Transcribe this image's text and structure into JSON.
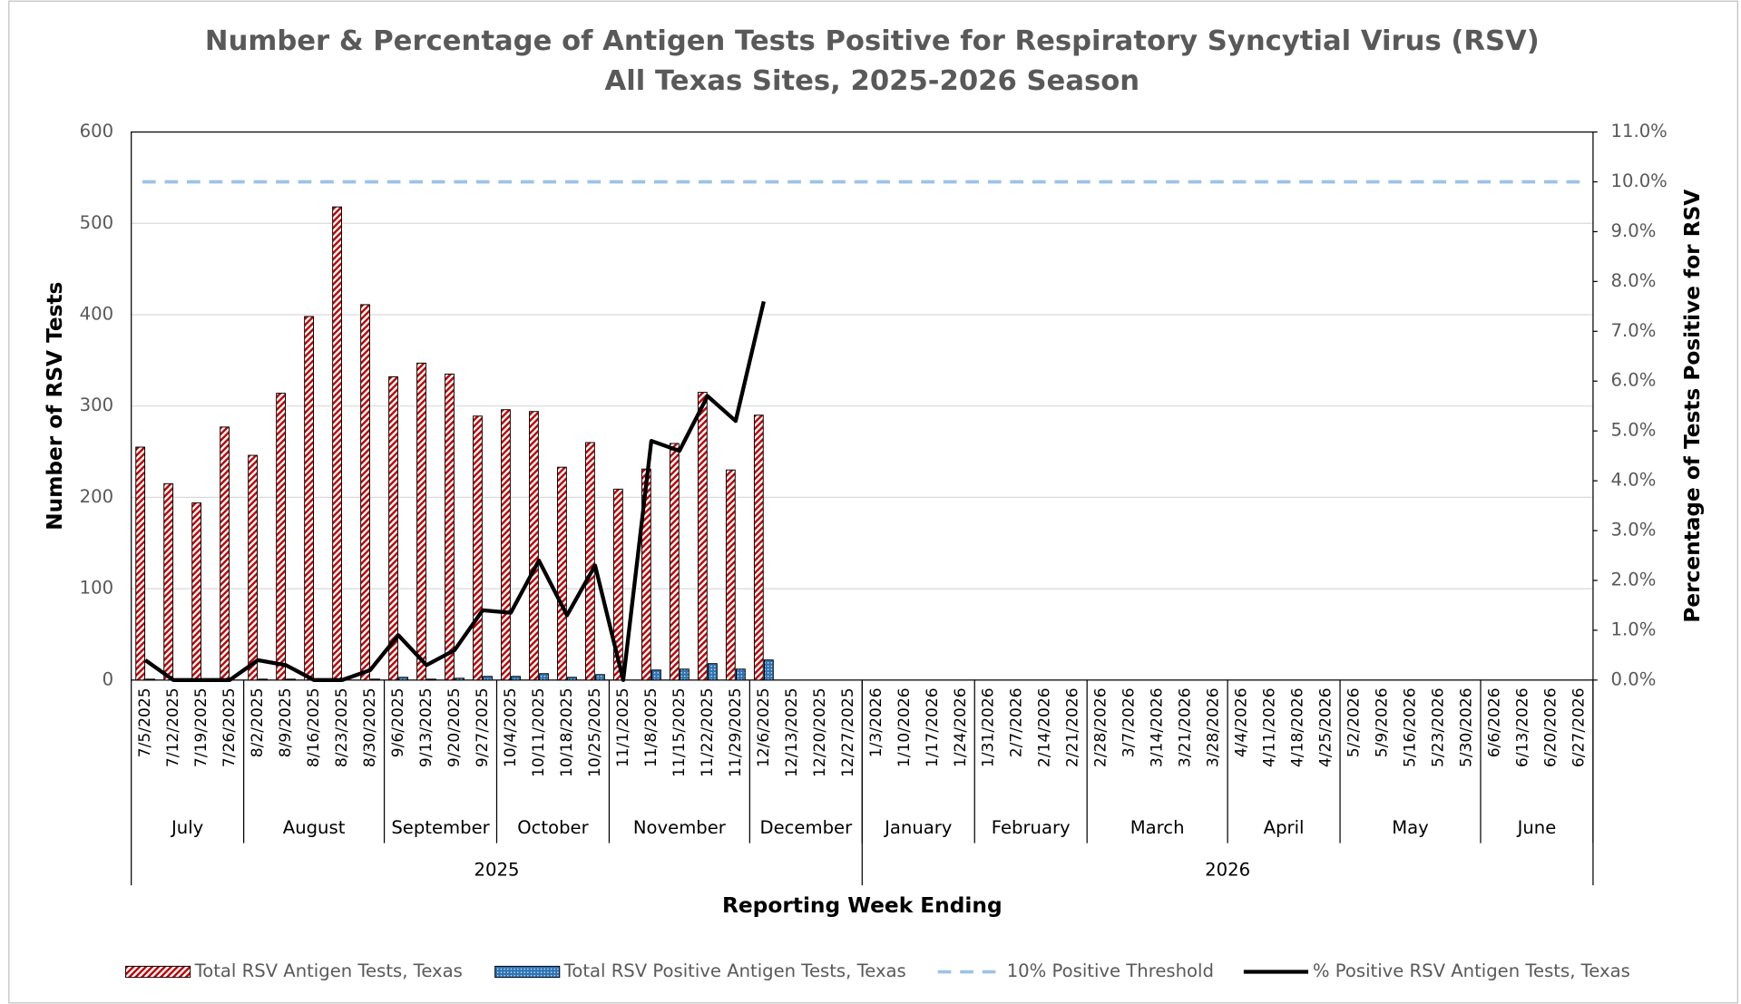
{
  "chart_data": {
    "type": "bar-line",
    "title": "Number & Percentage of Antigen Tests Positive for Respiratory Syncytial Virus (RSV)",
    "subtitle": "All Texas Sites, 2025-2026 Season",
    "x_label": "Reporting Week Ending",
    "y_label": "Number of RSV Tests",
    "y2_label": "Percentage of Tests Positive for RSV",
    "categories": [
      "7/5/2025",
      "7/12/2025",
      "7/19/2025",
      "7/26/2025",
      "8/2/2025",
      "8/9/2025",
      "8/16/2025",
      "8/23/2025",
      "8/30/2025",
      "9/6/2025",
      "9/13/2025",
      "9/20/2025",
      "9/27/2025",
      "10/4/2025",
      "10/11/2025",
      "10/18/2025",
      "10/25/2025",
      "11/1/2025",
      "11/8/2025",
      "11/15/2025",
      "11/22/2025",
      "11/29/2025",
      "12/6/2025",
      "12/13/2025",
      "12/20/2025",
      "12/27/2025",
      "1/3/2026",
      "1/10/2026",
      "1/17/2026",
      "1/24/2026",
      "1/31/2026",
      "2/7/2026",
      "2/14/2026",
      "2/21/2026",
      "2/28/2026",
      "3/7/2026",
      "3/14/2026",
      "3/21/2026",
      "3/28/2026",
      "4/4/2026",
      "4/11/2026",
      "4/18/2026",
      "4/25/2026",
      "5/2/2026",
      "5/9/2026",
      "5/16/2026",
      "5/23/2026",
      "5/30/2026",
      "6/6/2026",
      "6/13/2026",
      "6/20/2026",
      "6/27/2026"
    ],
    "months": [
      {
        "label": "July",
        "weeks": 4
      },
      {
        "label": "August",
        "weeks": 5
      },
      {
        "label": "September",
        "weeks": 4
      },
      {
        "label": "October",
        "weeks": 4
      },
      {
        "label": "November",
        "weeks": 5
      },
      {
        "label": "December",
        "weeks": 4
      },
      {
        "label": "January",
        "weeks": 4
      },
      {
        "label": "February",
        "weeks": 4
      },
      {
        "label": "March",
        "weeks": 5
      },
      {
        "label": "April",
        "weeks": 4
      },
      {
        "label": "May",
        "weeks": 5
      },
      {
        "label": "June",
        "weeks": 4
      }
    ],
    "years": [
      {
        "label": "2025",
        "weeks": 26
      },
      {
        "label": "2026",
        "weeks": 26
      }
    ],
    "series": [
      {
        "name": "Total RSV Antigen Tests, Texas",
        "kind": "bar",
        "color": "#c00000",
        "values": [
          255,
          215,
          194,
          277,
          246,
          314,
          398,
          518,
          411,
          332,
          347,
          335,
          289,
          296,
          294,
          233,
          260,
          209,
          231,
          259,
          315,
          230,
          290,
          null,
          null,
          null,
          null,
          null,
          null,
          null,
          null,
          null,
          null,
          null,
          null,
          null,
          null,
          null,
          null,
          null,
          null,
          null,
          null,
          null,
          null,
          null,
          null,
          null,
          null,
          null,
          null,
          null
        ]
      },
      {
        "name": "Total RSV Positive Antigen Tests, Texas",
        "kind": "bar",
        "color": "#2e75b6",
        "values": [
          1,
          0,
          0,
          0,
          1,
          1,
          0,
          0,
          1,
          3,
          1,
          2,
          4,
          4,
          7,
          3,
          6,
          0,
          11,
          12,
          18,
          12,
          22,
          null,
          null,
          null,
          null,
          null,
          null,
          null,
          null,
          null,
          null,
          null,
          null,
          null,
          null,
          null,
          null,
          null,
          null,
          null,
          null,
          null,
          null,
          null,
          null,
          null,
          null,
          null,
          null,
          null
        ]
      },
      {
        "name": "10% Positive Threshold",
        "kind": "threshold",
        "axis": "y2",
        "color": "#9dc3e6",
        "value": 10
      },
      {
        "name": "% Positive RSV Antigen Tests, Texas",
        "kind": "line",
        "axis": "y2",
        "color": "#000000",
        "values": [
          0.4,
          0,
          0,
          0,
          0.4,
          0.3,
          0,
          0,
          0.2,
          0.9,
          0.3,
          0.6,
          1.4,
          1.35,
          2.4,
          1.3,
          2.3,
          0,
          4.8,
          4.6,
          5.7,
          5.2,
          7.6,
          null,
          null,
          null,
          null,
          null,
          null,
          null,
          null,
          null,
          null,
          null,
          null,
          null,
          null,
          null,
          null,
          null,
          null,
          null,
          null,
          null,
          null,
          null,
          null,
          null,
          null,
          null,
          null,
          null
        ]
      }
    ],
    "ylim": [
      0,
      600
    ],
    "yticks": [
      0,
      100,
      200,
      300,
      400,
      500,
      600
    ],
    "y2lim": [
      0,
      11
    ],
    "y2ticks": [
      {
        "value": 0,
        "label": "0.0%"
      },
      {
        "value": 1,
        "label": "1.0%"
      },
      {
        "value": 2,
        "label": "2.0%"
      },
      {
        "value": 3,
        "label": "3.0%"
      },
      {
        "value": 4,
        "label": "4.0%"
      },
      {
        "value": 5,
        "label": "5.0%"
      },
      {
        "value": 6,
        "label": "6.0%"
      },
      {
        "value": 7,
        "label": "7.0%"
      },
      {
        "value": 8,
        "label": "8.0%"
      },
      {
        "value": 9,
        "label": "9.0%"
      },
      {
        "value": 10,
        "label": "10.0%"
      },
      {
        "value": 11,
        "label": "11.0%"
      }
    ],
    "grid": true,
    "legend": "bottom"
  }
}
